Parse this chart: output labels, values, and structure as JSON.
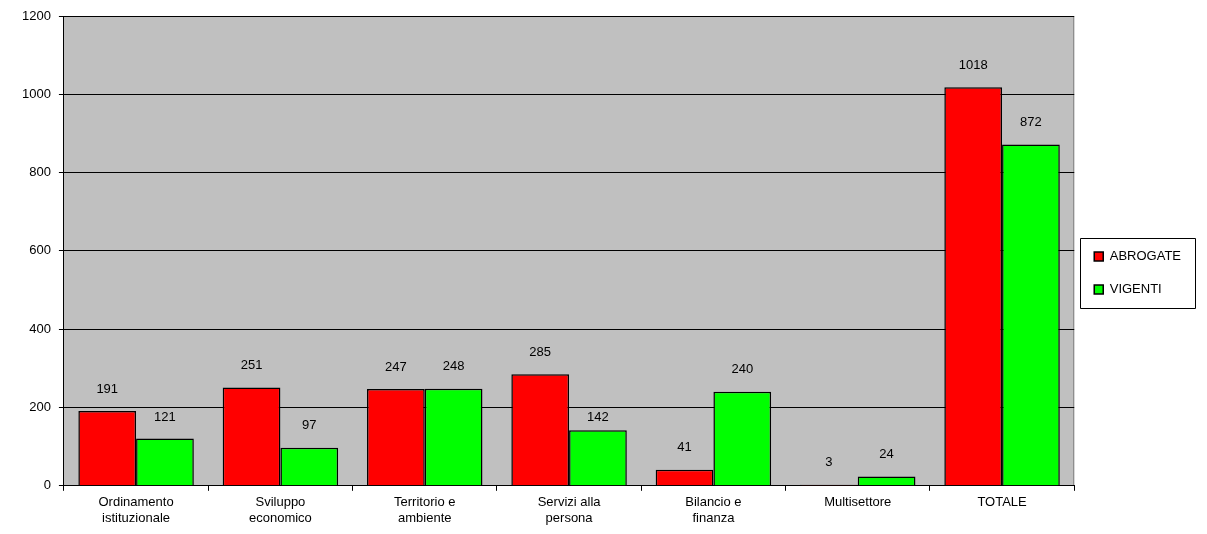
{
  "chart_data": {
    "type": "bar",
    "categories": [
      "Ordinamento istituzionale",
      "Sviluppo economico",
      "Territorio e ambiente",
      "Servizi alla persona",
      "Bilancio e finanza",
      "Multisettore",
      "TOTALE"
    ],
    "series": [
      {
        "name": "ABROGATE",
        "color": "#ff0000",
        "values": [
          191,
          251,
          247,
          285,
          41,
          3,
          1018
        ]
      },
      {
        "name": "VIGENTI",
        "color": "#00ff00",
        "values": [
          121,
          97,
          248,
          142,
          240,
          24,
          872
        ]
      }
    ],
    "ylim": [
      0,
      1200
    ],
    "yticks": [
      0,
      200,
      400,
      600,
      800,
      1000,
      1200
    ],
    "grid": "y",
    "legend": "right",
    "data_labels": true
  }
}
